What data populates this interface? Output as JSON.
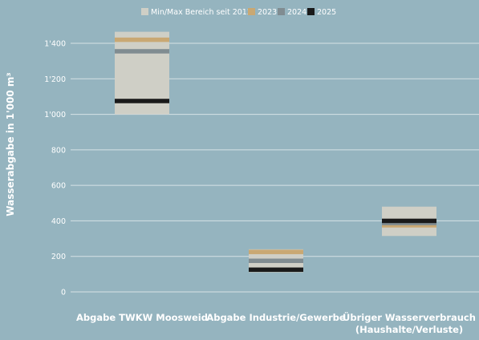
{
  "chart_data": {
    "type": "bar",
    "subtype": "range-with-markers",
    "ylabel": "Wasserabgabe in 1'000 m³",
    "ylim": [
      0,
      1500
    ],
    "yticks": [
      {
        "value": 0,
        "label": "0"
      },
      {
        "value": 200,
        "label": "200"
      },
      {
        "value": 400,
        "label": "400"
      },
      {
        "value": 600,
        "label": "600"
      },
      {
        "value": 800,
        "label": "800"
      },
      {
        "value": 1000,
        "label": "1'000"
      },
      {
        "value": 1200,
        "label": "1'200"
      },
      {
        "value": 1400,
        "label": "1'400"
      }
    ],
    "grid": true,
    "legend_position": "top-center",
    "legend": [
      {
        "label": "Min/Max Bereich seit 2012",
        "color": "#cfcfc6"
      },
      {
        "label": "2023",
        "color": "#c9a873"
      },
      {
        "label": "2024",
        "color": "#808c91"
      },
      {
        "label": "2025",
        "color": "#1a1a1a"
      }
    ],
    "categories": [
      {
        "lines": [
          "Abgabe TWKW Moosweid"
        ]
      },
      {
        "lines": [
          "Abgabe Industrie/Gewerbe"
        ]
      },
      {
        "lines": [
          "Übriger Wasserverbrauch",
          "(Haushalte/Verluste)"
        ]
      }
    ],
    "range": [
      {
        "min": 1000,
        "max": 1465
      },
      {
        "min": 110,
        "max": 240
      },
      {
        "min": 315,
        "max": 480
      }
    ],
    "series": [
      {
        "name": "2023",
        "values": [
          1420,
          225,
          375
        ]
      },
      {
        "name": "2024",
        "values": [
          1355,
          175,
          388
        ]
      },
      {
        "name": "2025",
        "values": [
          1075,
          125,
          400
        ]
      }
    ]
  }
}
